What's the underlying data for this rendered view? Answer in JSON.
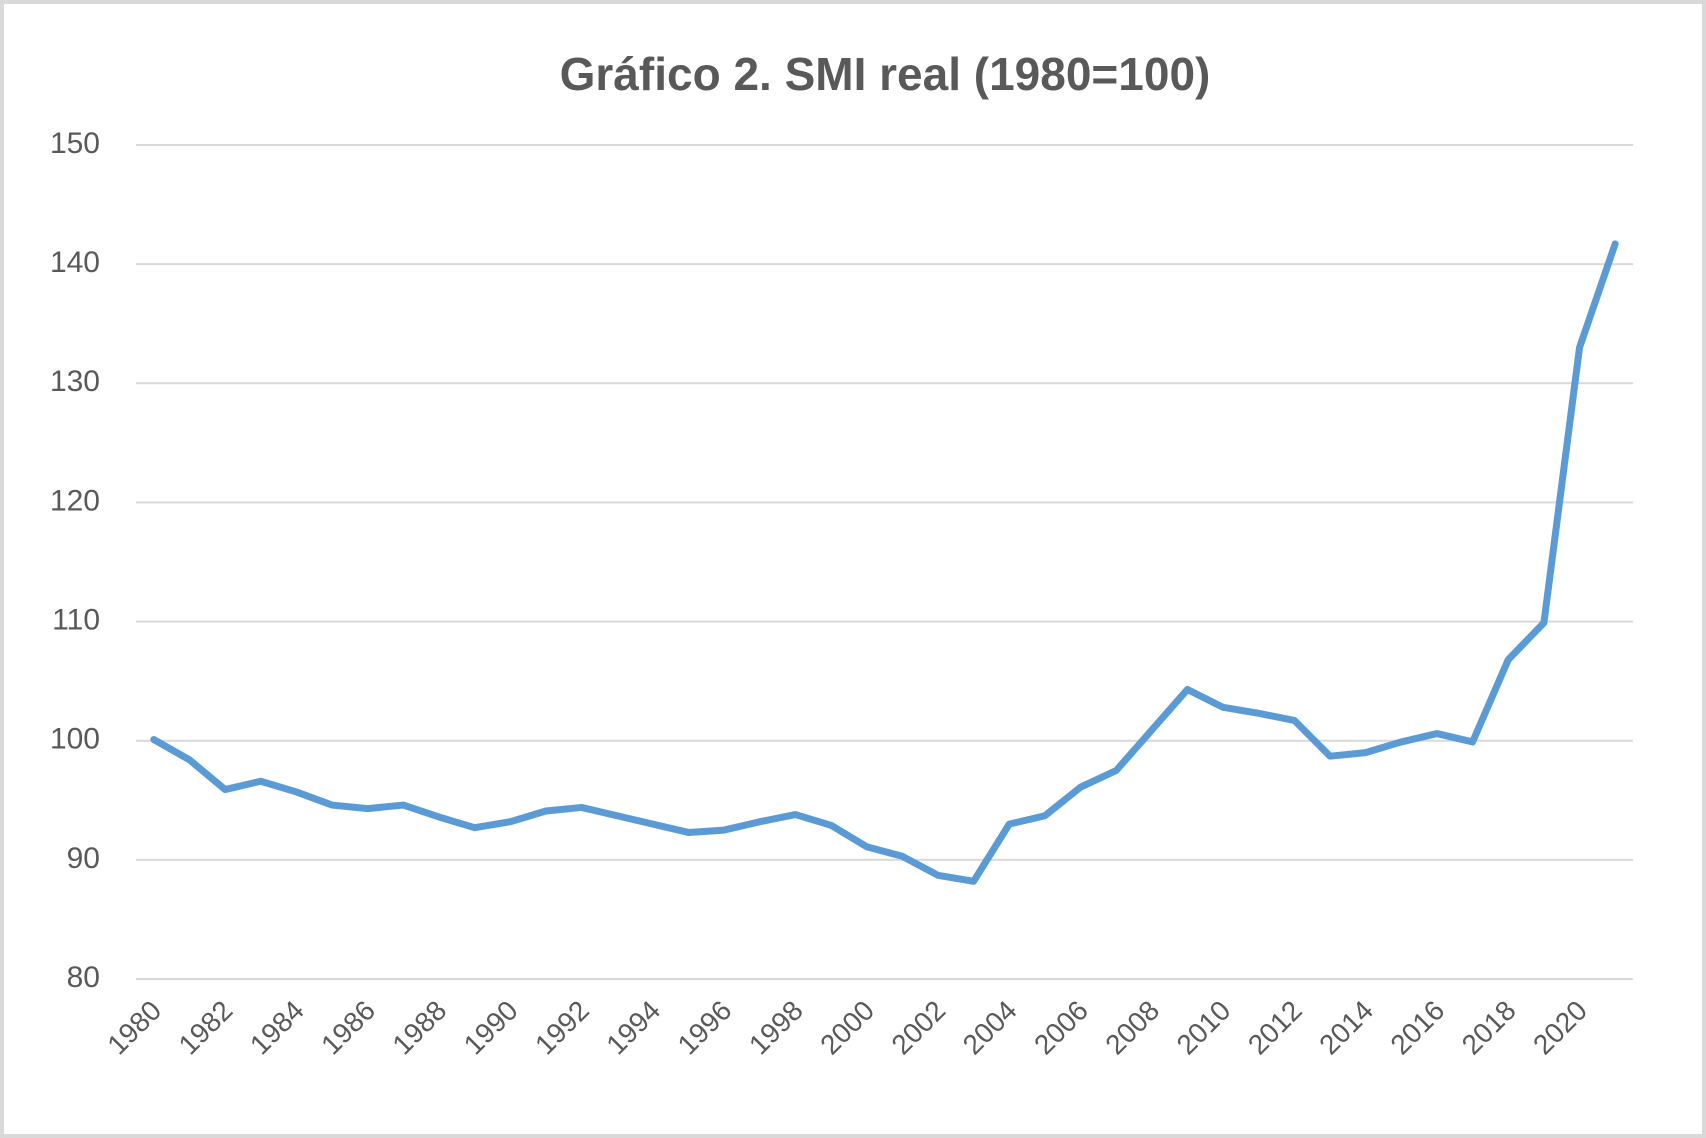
{
  "chart_data": {
    "type": "line",
    "title": "Gráfico 2.  SMI real (1980=100)",
    "categories": [
      "1980",
      null,
      "1982",
      null,
      "1984",
      null,
      "1986",
      null,
      "1988",
      null,
      "1990",
      null,
      "1992",
      null,
      "1994",
      null,
      "1996",
      null,
      "1998",
      null,
      "2000",
      null,
      "2002",
      null,
      "2004",
      null,
      "2006",
      null,
      "2008",
      null,
      "2010",
      null,
      "2012",
      null,
      "2014",
      null,
      "2016",
      null,
      "2018",
      null,
      "2020",
      null
    ],
    "series": [
      {
        "name": "SMI real",
        "color": "#5b9bd5",
        "values": [
          100.1,
          98.4,
          95.9,
          96.6,
          95.7,
          94.6,
          94.3,
          94.6,
          93.6,
          92.7,
          93.2,
          94.1,
          94.4,
          93.7,
          93.0,
          92.3,
          92.5,
          93.2,
          93.8,
          92.9,
          91.1,
          90.3,
          88.7,
          88.2,
          93.0,
          93.7,
          96.1,
          97.5,
          100.9,
          104.3,
          102.8,
          102.3,
          101.7,
          98.7,
          99.0,
          99.9,
          100.6,
          99.9,
          106.8,
          109.9,
          133.0,
          141.7
        ]
      }
    ],
    "ylim": [
      80,
      150
    ],
    "yticks": [
      80,
      90,
      100,
      110,
      120,
      130,
      140,
      150
    ],
    "grid": true
  }
}
